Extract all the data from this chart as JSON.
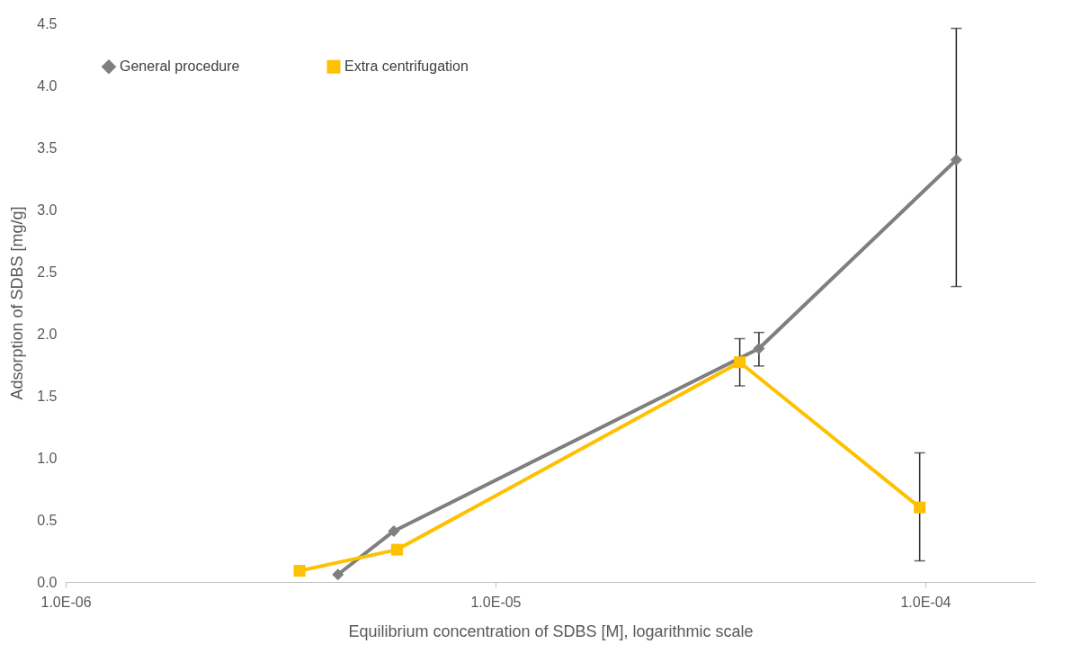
{
  "chart_data": {
    "type": "line",
    "xlabel": "Equilibrium concentration of SDBS [M], logarithmic scale",
    "ylabel": "Adsorption of SDBS [mg/g]",
    "log": "x",
    "xlim": [
      1e-06,
      0.00018
    ],
    "xticks": [
      {
        "value": 1e-06,
        "label": "1.0E-06"
      },
      {
        "value": 1e-05,
        "label": "1.0E-05"
      },
      {
        "value": 0.0001,
        "label": "1.0E-04"
      }
    ],
    "ylim": [
      0,
      4.5
    ],
    "yticks": [
      {
        "value": 0,
        "label": "0.0"
      },
      {
        "value": 0.5,
        "label": "0.5"
      },
      {
        "value": 1,
        "label": "1.0"
      },
      {
        "value": 1.5,
        "label": "1.5"
      },
      {
        "value": 2,
        "label": "2.0"
      },
      {
        "value": 2.5,
        "label": "2.5"
      },
      {
        "value": 3,
        "label": "3.0"
      },
      {
        "value": 3.5,
        "label": "3.5"
      },
      {
        "value": 4,
        "label": "4.0"
      },
      {
        "value": 4.5,
        "label": "4.5"
      }
    ],
    "grid": false,
    "legend": "top left",
    "series": [
      {
        "name": "General procedure",
        "color": "#7f7f7f",
        "marker": "diamond",
        "x": [
          4.3e-06,
          5.8e-06,
          4.1e-05,
          0.000118
        ],
        "values": [
          0.06,
          0.41,
          1.88,
          3.4
        ],
        "errors": [
          null,
          null,
          [
            1.74,
            2.01
          ],
          [
            2.38,
            4.46
          ]
        ]
      },
      {
        "name": "Extra centrifugation",
        "color": "#ffc000",
        "marker": "square",
        "x": [
          3.5e-06,
          5.9e-06,
          3.7e-05,
          9.7e-05
        ],
        "values": [
          0.09,
          0.26,
          1.77,
          0.6
        ],
        "errors": [
          null,
          null,
          [
            1.58,
            1.96
          ],
          [
            0.17,
            1.04
          ]
        ]
      }
    ]
  }
}
